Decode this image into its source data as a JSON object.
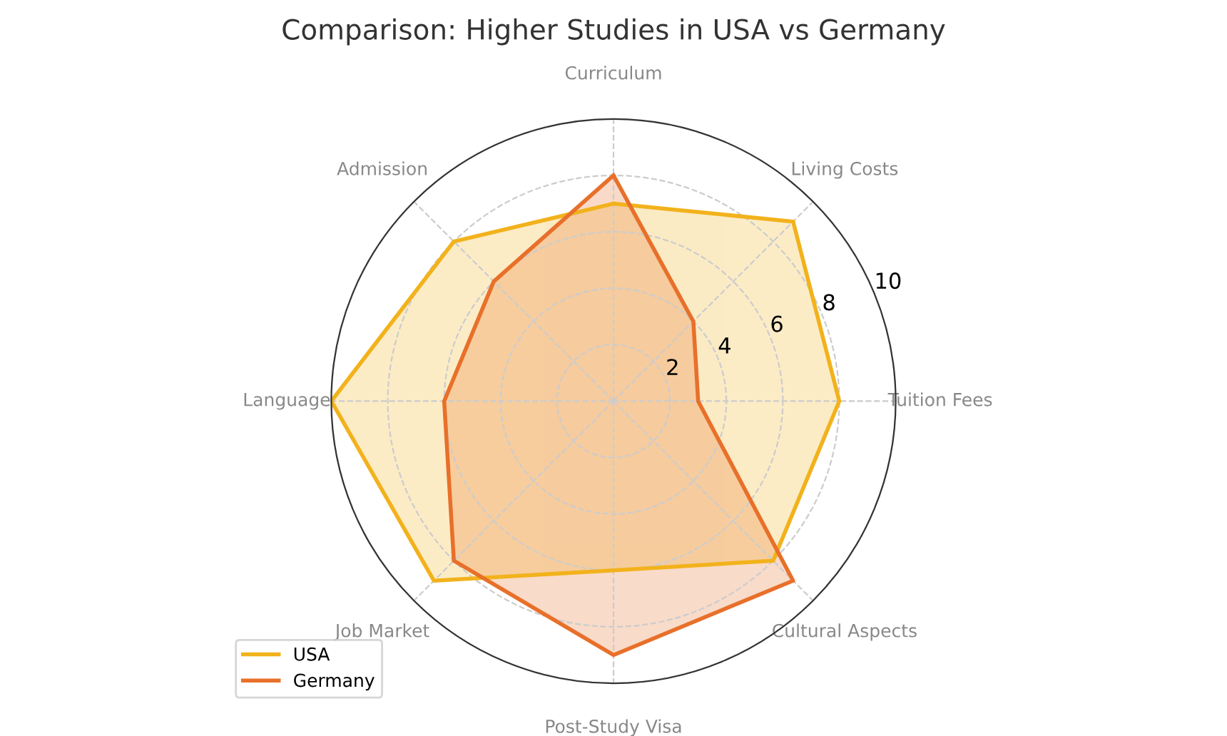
{
  "chart_data": {
    "type": "radar",
    "title": "Comparison: Higher Studies in USA vs Germany",
    "categories": [
      "Curriculum",
      "Living Costs",
      "Tuition Fees",
      "Cultural Aspects",
      "Post-Study Visa",
      "Job Market",
      "Language",
      "Admission"
    ],
    "series": [
      {
        "name": "USA",
        "color": "#f2b21c",
        "values": [
          7,
          9,
          8,
          8,
          6,
          9,
          10,
          8
        ]
      },
      {
        "name": "Germany",
        "color": "#e8702a",
        "values": [
          8,
          4,
          3,
          9,
          9,
          8,
          6,
          6
        ]
      }
    ],
    "ylim": [
      0,
      10
    ],
    "yticks": [
      2,
      4,
      6,
      8,
      10
    ],
    "grid": true,
    "legend": "bottom left"
  }
}
